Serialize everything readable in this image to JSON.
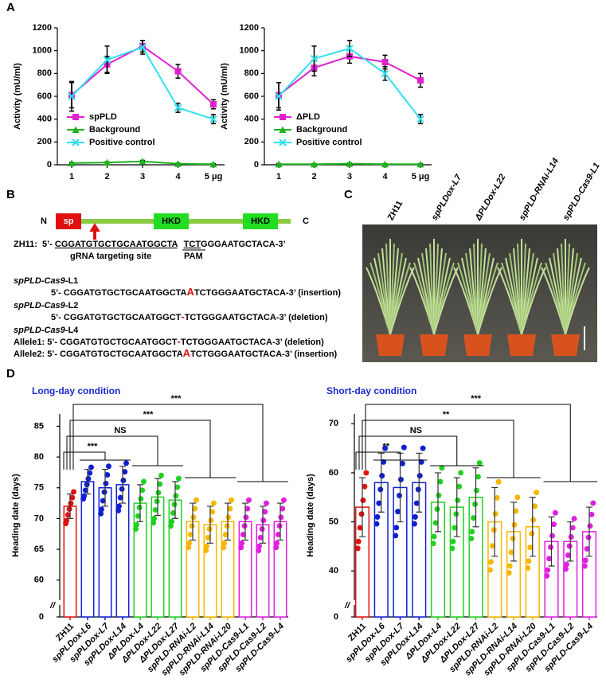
{
  "panel_labels": [
    "A",
    "B",
    "C",
    "D"
  ],
  "chart_data": [
    {
      "type": "line",
      "ylabel": "Activity (mU/ml)",
      "categories": [
        "1",
        "2",
        "3",
        "4",
        "5 μg"
      ],
      "ylim": [
        0,
        1200
      ],
      "yticks": [
        0,
        200,
        400,
        600,
        800,
        1000,
        1200
      ],
      "series": [
        {
          "name": "spPLD",
          "color": "#e020d0",
          "marker": "square",
          "values": [
            610,
            880,
            1040,
            820,
            530
          ],
          "errors": [
            110,
            70,
            50,
            60,
            40
          ]
        },
        {
          "name": "Background",
          "color": "#1db31d",
          "marker": "triangle",
          "values": [
            15,
            20,
            30,
            10,
            5
          ],
          "errors": [
            5,
            5,
            8,
            5,
            5
          ]
        },
        {
          "name": "Positive control",
          "color": "#30e0f0",
          "marker": "x",
          "values": [
            600,
            920,
            1030,
            500,
            400
          ],
          "errors": [
            130,
            120,
            60,
            40,
            40
          ]
        }
      ]
    },
    {
      "type": "line",
      "ylabel": "Activity (mU/ml)",
      "categories": [
        "1",
        "2",
        "3",
        "4",
        "5 μg"
      ],
      "ylim": [
        0,
        1200
      ],
      "yticks": [
        0,
        200,
        400,
        600,
        800,
        1000,
        1200
      ],
      "series": [
        {
          "name": "ΔPLD",
          "color": "#e020d0",
          "marker": "square",
          "values": [
            610,
            850,
            950,
            900,
            740
          ],
          "errors": [
            110,
            70,
            60,
            60,
            60
          ]
        },
        {
          "name": "Background",
          "color": "#1db31d",
          "marker": "triangle",
          "values": [
            5,
            5,
            10,
            5,
            5
          ],
          "errors": [
            5,
            5,
            5,
            5,
            5
          ]
        },
        {
          "name": "Positive control",
          "color": "#30e0f0",
          "marker": "x",
          "values": [
            600,
            930,
            1020,
            800,
            400
          ],
          "errors": [
            120,
            110,
            70,
            60,
            40
          ]
        }
      ]
    },
    {
      "type": "bar",
      "title": "Long-day condition",
      "ylabel": "Heading date (days)",
      "categories": [
        "ZH11",
        "spPLDox-L6",
        "spPLDox-L7",
        "spPLDox-L14",
        "ΔPLDox-L4",
        "ΔPLDox-L22",
        "ΔPLDox-L27",
        "spPLD-RNAi-L2",
        "spPLD-RNAi-L14",
        "spPLD-RNAi-L20",
        "spPLD-Cas9-L1",
        "spPLD-Cas9-L2",
        "spPLD-Cas9-L4"
      ],
      "values": [
        72,
        76,
        75,
        75.5,
        72.5,
        73.5,
        73,
        69.5,
        69,
        69.5,
        69.5,
        69,
        69.5
      ],
      "errors": [
        2,
        2,
        3,
        3,
        3,
        3,
        3,
        3,
        3,
        3,
        3,
        3,
        3
      ],
      "colors": [
        "#e01010",
        "#1020d0",
        "#1020d0",
        "#1020d0",
        "#22d022",
        "#22d022",
        "#22d022",
        "#f5b800",
        "#f5b800",
        "#f5b800",
        "#e020e0",
        "#e020e0",
        "#e020e0"
      ],
      "ylim": [
        0,
        87
      ],
      "yticks": [
        0,
        60,
        65,
        70,
        75,
        80,
        85
      ],
      "axis_break": "//",
      "annotations": [
        {
          "text": "***"
        },
        {
          "text": "NS"
        },
        {
          "text": "***"
        },
        {
          "text": "***"
        }
      ]
    },
    {
      "type": "bar",
      "title": "Short-day condition",
      "ylabel": "Heading date (days)",
      "categories": [
        "ZH11",
        "spPLDox-L6",
        "spPLDox-L7",
        "spPLDox-L14",
        "ΔPLDox-L4",
        "ΔPLDox-L22",
        "ΔPLDox-L27",
        "spPLD-RNAi-L2",
        "spPLD-RNAi-L14",
        "spPLD-RNAi-L20",
        "spPLD-Cas9-L1",
        "spPLD-Cas9-L2",
        "spPLD-Cas9-L4"
      ],
      "values": [
        53,
        58,
        57,
        58,
        54,
        53,
        55,
        50,
        48,
        49,
        46,
        46,
        48
      ],
      "errors": [
        6,
        6,
        7,
        6,
        6,
        6,
        6,
        7,
        6,
        6,
        5,
        4,
        5
      ],
      "colors": [
        "#e01010",
        "#1020d0",
        "#1020d0",
        "#1020d0",
        "#22d022",
        "#22d022",
        "#22d022",
        "#f5b800",
        "#f5b800",
        "#f5b800",
        "#e020e0",
        "#e020e0",
        "#e020e0"
      ],
      "ylim": [
        0,
        72
      ],
      "yticks": [
        0,
        40,
        50,
        60,
        70
      ],
      "axis_break": "//",
      "annotations": [
        {
          "text": "**"
        },
        {
          "text": "NS"
        },
        {
          "text": "**"
        },
        {
          "text": "***"
        }
      ]
    }
  ],
  "panel_b": {
    "n": "N",
    "sp": "sp",
    "hkd": [
      "HKD",
      "HKD"
    ],
    "c": "C",
    "wt": {
      "label": "ZH11:",
      "seq_prefix": "5’- ",
      "guide": "CGGATGTGCTGCAATGGCTA",
      "pam": "TCT",
      "rest": "GGGAATGCTACA-3’",
      "guide_label": "gRNA targeting site",
      "pam_label": "PAM"
    },
    "mutants": [
      {
        "line": "spPLD-Cas9",
        "suffix": "-L1",
        "alleles": [
          {
            "left": "5’- CGGATGTGCTGCAATGGCTA",
            "edit": "A",
            "right": "TCTGGGAATGCTACA-3’ (insertion)"
          }
        ]
      },
      {
        "line": "spPLD-Cas9",
        "suffix": "-L2",
        "alleles": [
          {
            "left": "5’- CGGATGTGCTGCAATGGCT",
            "edit": "-",
            "right": "TCTGGGAATGCTACA-3’ (deletion)"
          }
        ]
      },
      {
        "line": "spPLD-Cas9",
        "suffix": "-L4",
        "alleles": [
          {
            "prefix": "Allele1: ",
            "left": "5’- CGGATGTGCTGCAATGGCT",
            "edit": "-",
            "right": "TCTGGGAATGCTACA-3’ (deletion)"
          },
          {
            "prefix": "Allele2: ",
            "left": "5’- CGGATGTGCTGCAATGGCTA",
            "edit": "A",
            "right": "TCTGGGAATGCTACA-3’ (insertion)"
          }
        ]
      }
    ]
  },
  "panel_c": {
    "plants": [
      "ZH11",
      "spPLDox-L7",
      "ΔPLDox-L22",
      "spPLD-RNAi-L14",
      "spPLD-Cas9-L1"
    ]
  }
}
